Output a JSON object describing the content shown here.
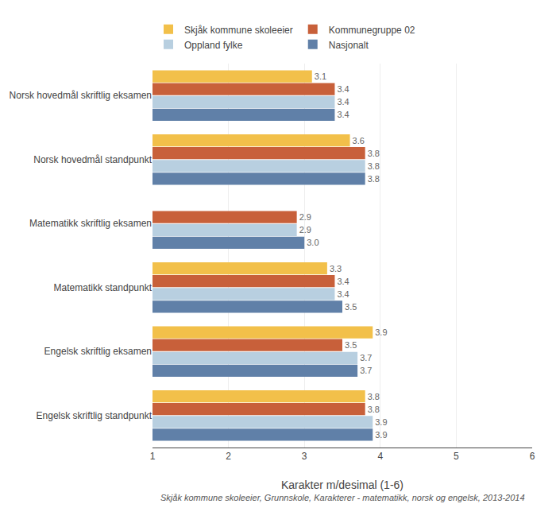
{
  "chart_data": {
    "type": "bar",
    "orientation": "horizontal",
    "categories": [
      "Norsk hovedmål skriftlig eksamen",
      "Norsk hovedmål standpunkt",
      "Matematikk skriftlig eksamen",
      "Matematikk standpunkt",
      "Engelsk skriftlig eksamen",
      "Engelsk skriftlig standpunkt"
    ],
    "series": [
      {
        "name": "Skjåk kommune skoleeier",
        "color": "#f2c04a",
        "values": [
          3.1,
          3.6,
          null,
          3.3,
          3.9,
          3.8
        ],
        "value_labels": [
          "3.1",
          "3.6",
          null,
          "3.3",
          "3.9",
          "3.8"
        ]
      },
      {
        "name": "Kommunegruppe 02",
        "color": "#c8603a",
        "values": [
          3.4,
          3.8,
          2.9,
          3.4,
          3.5,
          3.8
        ],
        "value_labels": [
          "3.4",
          "3.8",
          "2.9",
          "3.4",
          "3.5",
          "3.8"
        ]
      },
      {
        "name": "Oppland fylke",
        "color": "#b8cfe0",
        "values": [
          3.4,
          3.8,
          2.9,
          3.4,
          3.7,
          3.9
        ],
        "value_labels": [
          "3.4",
          "3.8",
          "2.9",
          "3.4",
          "3.7",
          "3.9"
        ]
      },
      {
        "name": "Nasjonalt",
        "color": "#6080a8",
        "values": [
          3.4,
          3.8,
          3.0,
          3.5,
          3.7,
          3.9
        ],
        "value_labels": [
          "3.4",
          "3.8",
          "3.0",
          "3.5",
          "3.7",
          "3.9"
        ]
      }
    ],
    "xlim": [
      1,
      6
    ],
    "xticks": [
      1,
      2,
      3,
      4,
      5,
      6
    ],
    "xlabel": "Karakter m/desimal (1-6)",
    "annotations": [
      "Skjåk kommune skoleeier, Grunnskole, Karakterer - matematikk, norsk og engelsk, 2013-2014"
    ],
    "grid": true,
    "legend": "upper left",
    "data_labels": true
  }
}
